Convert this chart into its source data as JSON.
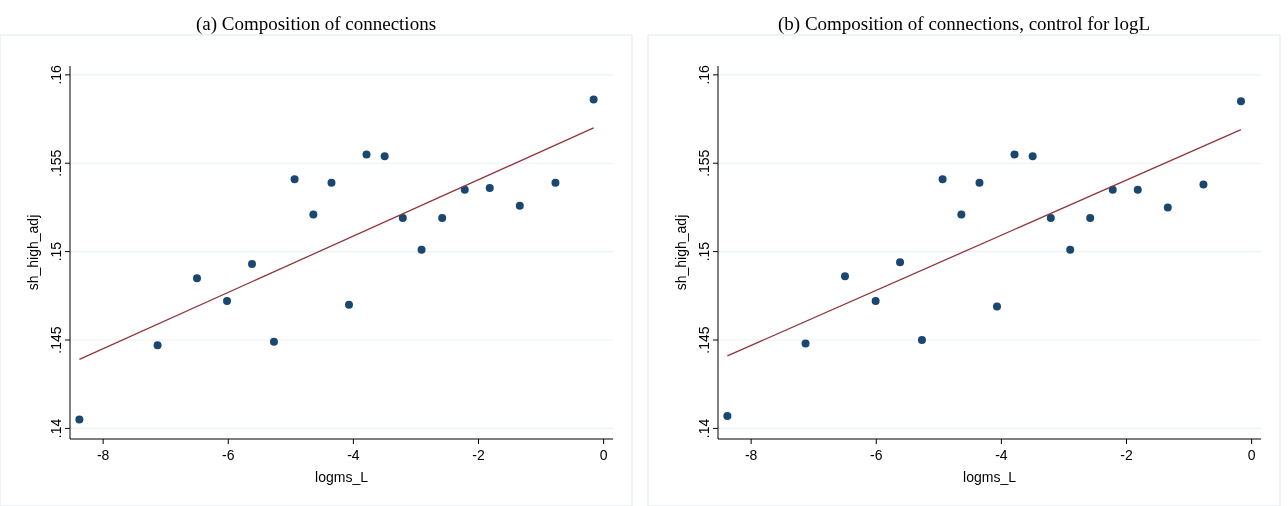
{
  "chart_data": [
    {
      "type": "scatter",
      "title": "(a) Composition of connections",
      "xlabel": "logms_L",
      "ylabel": "sh_high_adj",
      "xlim": [
        -8.53,
        0.15
      ],
      "ylim": [
        0.1394,
        0.1605
      ],
      "xticks": [
        {
          "value": -8,
          "label": "-8"
        },
        {
          "value": -6,
          "label": "-6"
        },
        {
          "value": -4,
          "label": "-4"
        },
        {
          "value": -2,
          "label": "-2"
        },
        0
      ],
      "yticks": [
        {
          "value": 0.14,
          "label": ".14"
        },
        {
          "value": 0.145,
          "label": ".145"
        },
        {
          "value": 0.15,
          "label": ".15"
        },
        {
          "value": 0.155,
          "label": ".155"
        },
        {
          "value": 0.16,
          "label": ".16"
        }
      ],
      "grid": "y",
      "series": [
        {
          "marker": "circle",
          "color": "#1a476f",
          "x": [
            -8.38,
            -7.13,
            -6.5,
            -6.02,
            -5.62,
            -5.27,
            -4.94,
            -4.64,
            -4.35,
            -4.07,
            -3.79,
            -3.5,
            -3.21,
            -2.91,
            -2.58,
            -2.22,
            -1.82,
            -1.34,
            -0.77,
            -0.16
          ],
          "values": [
            0.1405,
            0.1447,
            0.1485,
            0.1472,
            0.1493,
            0.1449,
            0.1541,
            0.1521,
            0.1539,
            0.147,
            0.1555,
            0.1554,
            0.1519,
            0.1501,
            0.1519,
            0.1535,
            0.1536,
            0.1526,
            0.1539,
            0.1586
          ]
        },
        {
          "type": "line",
          "marker": "none",
          "color": "#90353b",
          "x": [
            -8.38,
            -0.16
          ],
          "values": [
            0.1439,
            0.157
          ]
        }
      ]
    },
    {
      "type": "scatter",
      "title": "(b) Composition of connections, control for logL",
      "xlabel": "logms_L",
      "ylabel": "sh_high_adj",
      "xlim": [
        -8.53,
        0.15
      ],
      "ylim": [
        0.1394,
        0.1605
      ],
      "xticks": [
        {
          "value": -8,
          "label": "-8"
        },
        {
          "value": -6,
          "label": "-6"
        },
        {
          "value": -4,
          "label": "-4"
        },
        {
          "value": -2,
          "label": "-2"
        },
        0
      ],
      "yticks": [
        {
          "value": 0.14,
          "label": ".14"
        },
        {
          "value": 0.145,
          "label": ".145"
        },
        {
          "value": 0.15,
          "label": ".15"
        },
        {
          "value": 0.155,
          "label": ".155"
        },
        {
          "value": 0.16,
          "label": ".16"
        }
      ],
      "grid": "y",
      "series": [
        {
          "marker": "circle",
          "color": "#1a476f",
          "x": [
            -8.38,
            -7.13,
            -6.5,
            -6.01,
            -5.62,
            -5.27,
            -4.94,
            -4.64,
            -4.35,
            -4.07,
            -3.79,
            -3.5,
            -3.21,
            -2.9,
            -2.58,
            -2.22,
            -1.82,
            -1.34,
            -0.77,
            -0.17
          ],
          "values": [
            0.1407,
            0.1448,
            0.1486,
            0.1472,
            0.1494,
            0.145,
            0.1541,
            0.1521,
            0.1539,
            0.1469,
            0.1555,
            0.1554,
            0.1519,
            0.1501,
            0.1519,
            0.1535,
            0.1535,
            0.1525,
            0.1538,
            0.1585
          ]
        },
        {
          "type": "line",
          "marker": "none",
          "color": "#90353b",
          "x": [
            -8.38,
            -0.17
          ],
          "values": [
            0.1441,
            0.1569
          ]
        }
      ]
    }
  ]
}
